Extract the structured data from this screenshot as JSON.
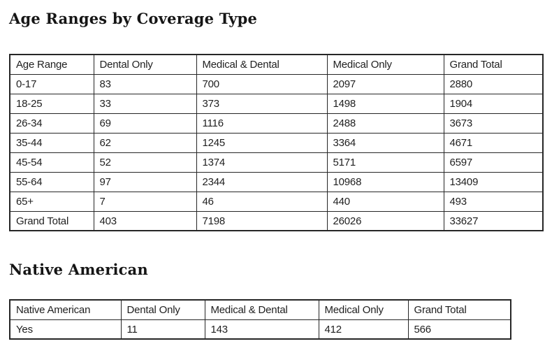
{
  "colors": {
    "background": "#ffffff",
    "text": "#1f1f1f",
    "border": "#262626"
  },
  "chart_data": [
    {
      "type": "table",
      "title": "Age Ranges by Coverage Type",
      "headers": [
        "Age Range",
        "Dental Only",
        "Medical & Dental",
        "Medical Only",
        "Grand Total"
      ],
      "rows": [
        [
          "0-17",
          "83",
          "700",
          "2097",
          "2880"
        ],
        [
          "18-25",
          "33",
          "373",
          "1498",
          "1904"
        ],
        [
          "26-34",
          "69",
          "1116",
          "2488",
          "3673"
        ],
        [
          "35-44",
          "62",
          "1245",
          "3364",
          "4671"
        ],
        [
          "45-54",
          "52",
          "1374",
          "5171",
          "6597"
        ],
        [
          "55-64",
          "97",
          "2344",
          "10968",
          "13409"
        ],
        [
          "65+",
          "7",
          "46",
          "440",
          "493"
        ],
        [
          "Grand Total",
          "403",
          "7198",
          "26026",
          "33627"
        ]
      ]
    },
    {
      "type": "table",
      "title": "Native American",
      "headers": [
        "Native American",
        "Dental Only",
        "Medical & Dental",
        "Medical Only",
        "Grand Total"
      ],
      "rows": [
        [
          "Yes",
          "11",
          "143",
          "412",
          "566"
        ]
      ]
    }
  ]
}
